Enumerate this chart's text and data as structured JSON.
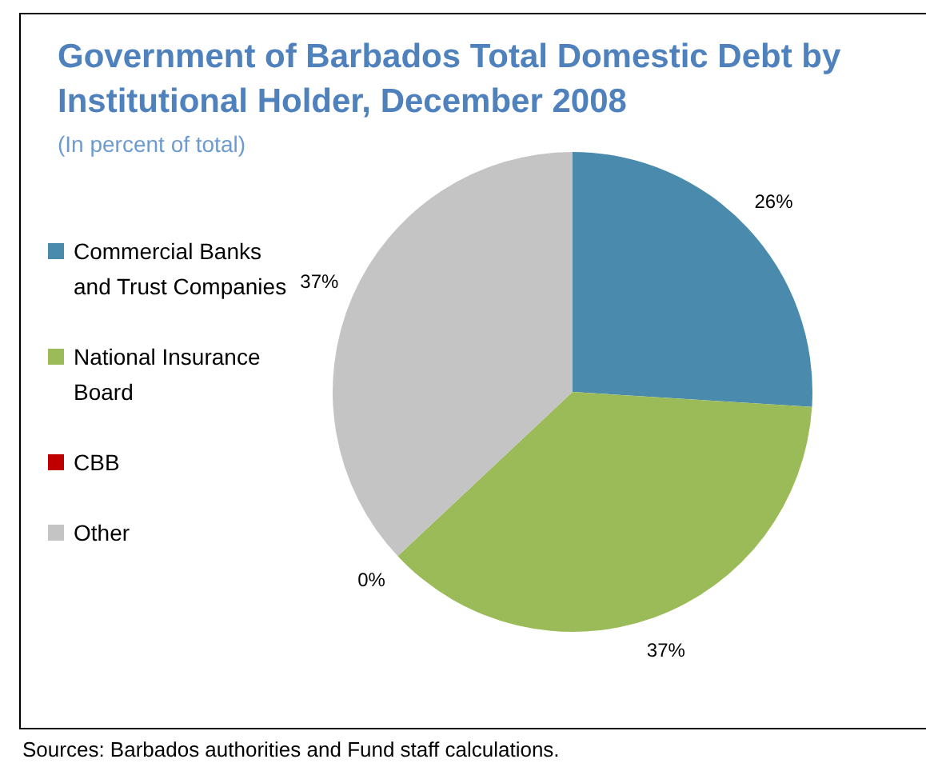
{
  "chart_data": {
    "type": "pie",
    "title": "Government of Barbados Total Domestic Debt by Institutional Holder, December 2008",
    "subtitle": "(In percent of total)",
    "categories": [
      "Commercial Banks and Trust Companies",
      "National Insurance Board",
      "CBB",
      "Other"
    ],
    "values": [
      26,
      37,
      0,
      37
    ],
    "colors": [
      "#4a8bad",
      "#9bbb59",
      "#c00000",
      "#c4c4c4"
    ],
    "value_labels": [
      "26%",
      "37%",
      "0%",
      "37%"
    ],
    "legend": "left",
    "annotations": [
      "Sources: Barbados authorities and Fund staff calculations."
    ]
  }
}
